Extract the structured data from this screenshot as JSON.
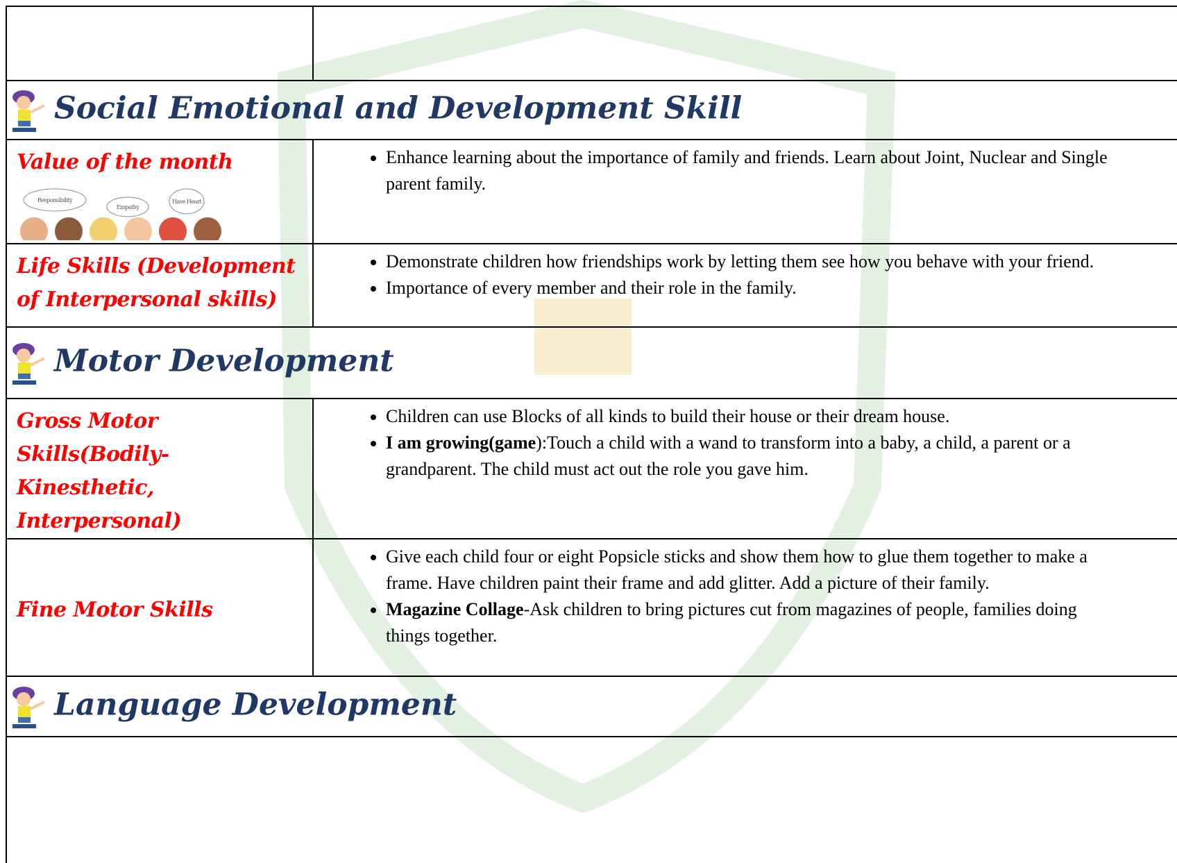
{
  "sections": [
    {
      "heading": "Social Emotional and Development Skill",
      "rows": [
        {
          "label": "Value of the month",
          "image_words": [
            "Responsibility",
            "Empathy",
            "Have Heart"
          ],
          "items": [
            {
              "text": "Enhance learning about the importance of family and friends. Learn about Joint, Nuclear and Single parent family."
            }
          ]
        },
        {
          "label": "Life Skills (Development of Interpersonal skills)",
          "items": [
            {
              "text": "Demonstrate children how friendships work by letting them see how you behave with your friend."
            },
            {
              "text": "Importance of every member and their role in the family."
            }
          ]
        }
      ]
    },
    {
      "heading": "Motor Development",
      "rows": [
        {
          "label": "Gross Motor Skills(Bodily-Kinesthetic, Interpersonal)",
          "items": [
            {
              "text": "Children can use Blocks of all kinds to build their house or their dream house."
            },
            {
              "lead": "I am growing(game",
              "text": "):Touch a child with a wand to transform into a baby, a child, a parent or a grandparent. The child must act out the role you gave him."
            }
          ]
        },
        {
          "label": "Fine Motor Skills",
          "items": [
            {
              "text": "Give each child four or eight Popsicle sticks and show them how to glue them together to make a frame. Have children paint their frame and add glitter. Add a picture of their family."
            },
            {
              "lead": "Magazine Collage",
              "text": "-Ask children to bring pictures cut from magazines of people, families doing things together."
            }
          ]
        }
      ]
    },
    {
      "heading": "Language Development",
      "rows": []
    }
  ]
}
